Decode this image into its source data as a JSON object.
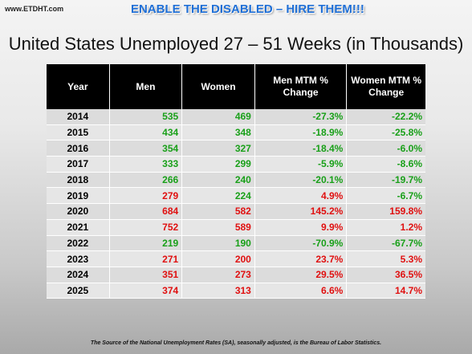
{
  "site_label": "www.ETDHT.com",
  "banner": "ENABLE THE DISABLED – HIRE THEM!!!",
  "title": "United States Unemployed 27 – 51 Weeks (in Thousands)",
  "colors": {
    "positive": "#19a019",
    "negative": "#e01010"
  },
  "table": {
    "headers": [
      "Year",
      "Men",
      "Women",
      "Men MTM % Change",
      "Women MTM % Change"
    ],
    "rows": [
      {
        "year": "2014",
        "men": "535",
        "women": "469",
        "men_change": "-27.3%",
        "women_change": "-22.2%",
        "men_c": "g",
        "women_c": "g",
        "mchg_c": "g",
        "wchg_c": "g"
      },
      {
        "year": "2015",
        "men": "434",
        "women": "348",
        "men_change": "-18.9%",
        "women_change": "-25.8%",
        "men_c": "g",
        "women_c": "g",
        "mchg_c": "g",
        "wchg_c": "g"
      },
      {
        "year": "2016",
        "men": "354",
        "women": "327",
        "men_change": "-18.4%",
        "women_change": "-6.0%",
        "men_c": "g",
        "women_c": "g",
        "mchg_c": "g",
        "wchg_c": "g"
      },
      {
        "year": "2017",
        "men": "333",
        "women": "299",
        "men_change": "-5.9%",
        "women_change": "-8.6%",
        "men_c": "g",
        "women_c": "g",
        "mchg_c": "g",
        "wchg_c": "g"
      },
      {
        "year": "2018",
        "men": "266",
        "women": "240",
        "men_change": "-20.1%",
        "women_change": "-19.7%",
        "men_c": "g",
        "women_c": "g",
        "mchg_c": "g",
        "wchg_c": "g"
      },
      {
        "year": "2019",
        "men": "279",
        "women": "224",
        "men_change": "4.9%",
        "women_change": "-6.7%",
        "men_c": "r",
        "women_c": "g",
        "mchg_c": "r",
        "wchg_c": "g"
      },
      {
        "year": "2020",
        "men": "684",
        "women": "582",
        "men_change": "145.2%",
        "women_change": "159.8%",
        "men_c": "r",
        "women_c": "r",
        "mchg_c": "r",
        "wchg_c": "r"
      },
      {
        "year": "2021",
        "men": "752",
        "women": "589",
        "men_change": "9.9%",
        "women_change": "1.2%",
        "men_c": "r",
        "women_c": "r",
        "mchg_c": "r",
        "wchg_c": "r"
      },
      {
        "year": "2022",
        "men": "219",
        "women": "190",
        "men_change": "-70.9%",
        "women_change": "-67.7%",
        "men_c": "g",
        "women_c": "g",
        "mchg_c": "g",
        "wchg_c": "g"
      },
      {
        "year": "2023",
        "men": "271",
        "women": "200",
        "men_change": "23.7%",
        "women_change": "5.3%",
        "men_c": "r",
        "women_c": "r",
        "mchg_c": "r",
        "wchg_c": "r"
      },
      {
        "year": "2024",
        "men": "351",
        "women": "273",
        "men_change": "29.5%",
        "women_change": "36.5%",
        "men_c": "r",
        "women_c": "r",
        "mchg_c": "r",
        "wchg_c": "r"
      },
      {
        "year": "2025",
        "men": "374",
        "women": "313",
        "men_change": "6.6%",
        "women_change": "14.7%",
        "men_c": "r",
        "women_c": "r",
        "mchg_c": "r",
        "wchg_c": "r"
      }
    ]
  },
  "source_note": "The Source of the National Unemployment Rates (SA), seasonally adjusted, is the Bureau of Labor Statistics."
}
